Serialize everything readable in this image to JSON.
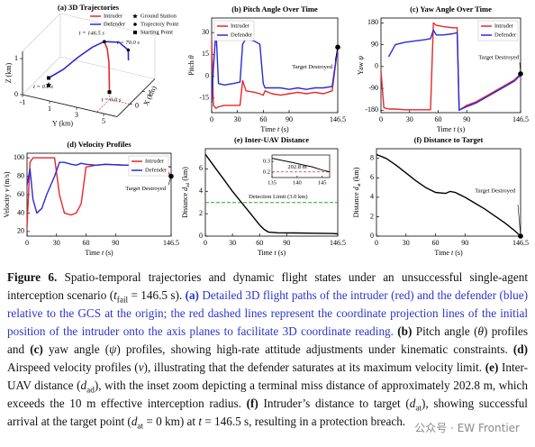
{
  "chart_data": [
    {
      "type": "line3d",
      "title": "(a) 3D Trajectories",
      "xlabel": [
        {
          "text": "X (km)"
        }
      ],
      "ylabel": [
        {
          "text": "Y (km)"
        }
      ],
      "zlabel": [
        {
          "text": "Z (km)"
        }
      ],
      "xlim": [
        -1,
        2
      ],
      "ylim": [
        -1,
        6
      ],
      "zlim": [
        0,
        1.2
      ],
      "xticks": [
        0,
        1
      ],
      "yticks": [
        -1,
        1,
        3,
        5
      ],
      "zticks": [
        0,
        1
      ],
      "series": [
        {
          "name": "Intruder",
          "color": "#e8262a",
          "x": [
            0,
            0.2,
            0.5,
            0.9,
            1.2
          ],
          "y": [
            4.5,
            4.3,
            4.0,
            3.5,
            3.0
          ],
          "z": [
            0.2,
            0.5,
            0.8,
            1.0,
            1.05
          ]
        },
        {
          "name": "Defender",
          "color": "#2a2ad6",
          "x": [
            0,
            0.3,
            0.6,
            0.9,
            1.2,
            1.5,
            1.6,
            1.4
          ],
          "y": [
            0,
            0.8,
            1.6,
            2.4,
            3.0,
            3.8,
            4.4,
            4.6
          ],
          "z": [
            0.2,
            0.4,
            0.7,
            0.95,
            1.05,
            1.0,
            0.8,
            0.6
          ]
        }
      ],
      "ground_station": {
        "x": 0,
        "y": 0,
        "z": 0
      },
      "marker_legend": [
        "Ground Station",
        "Trajectory Point",
        "Starting Point"
      ],
      "annotations": [
        "t = 146.5 s",
        "t = 70.0 s",
        "t = 0.0 s",
        "t = 0.0 s"
      ]
    },
    {
      "type": "line",
      "title": "(b) Pitch Angle Over Time",
      "xlabel": [
        {
          "text": "Time "
        },
        {
          "text": "t",
          "style": "italic"
        },
        {
          "text": " (s)"
        }
      ],
      "ylabel": [
        {
          "text": "Pitch "
        },
        {
          "text": "θ",
          "style": "italic"
        }
      ],
      "x": [
        0,
        2,
        5,
        8,
        15,
        25,
        33,
        36,
        40,
        50,
        56,
        60,
        62,
        70,
        80,
        90,
        100,
        110,
        120,
        130,
        140,
        146.5
      ],
      "series": [
        {
          "name": "Intruder",
          "color": "#e8262a",
          "values": [
            25,
            -20,
            -22,
            -21,
            -20,
            -20,
            -20,
            -3,
            -10,
            -11,
            -12,
            -13,
            -10,
            -12,
            -13,
            -12,
            -11,
            -12,
            -11,
            -12,
            -10,
            20
          ]
        },
        {
          "name": "Defender",
          "color": "#2a2ad6",
          "values": [
            -18,
            5,
            32,
            -5,
            -6,
            -5,
            -4,
            22,
            26,
            24,
            22,
            -5,
            -8,
            -8,
            -8,
            -9,
            -8,
            -9,
            -8,
            -8,
            -7,
            20
          ]
        }
      ],
      "xlim": [
        0,
        146.5
      ],
      "xticks": [
        0,
        30,
        60,
        90,
        146.5
      ],
      "ylim": [
        -25,
        40
      ],
      "yticks": [
        -15,
        0,
        15,
        30
      ],
      "legend": "upper left",
      "target": {
        "x": 146.5,
        "y": 20,
        "label": "Target Destroyed"
      }
    },
    {
      "type": "line",
      "title": "(c) Yaw Angle Over Time",
      "xlabel": [
        {
          "text": "Time "
        },
        {
          "text": "t",
          "style": "italic"
        },
        {
          "text": " (s)"
        }
      ],
      "ylabel": [
        {
          "text": "Yaw "
        },
        {
          "text": "ψ",
          "style": "italic"
        }
      ],
      "x": [
        0,
        3,
        8,
        15,
        25,
        35,
        45,
        52,
        55,
        58,
        65,
        75,
        80,
        82,
        90,
        100,
        120,
        140,
        146.5
      ],
      "series": [
        {
          "name": "Intruder",
          "color": "#e8262a",
          "values": [
            -20,
            -170,
            -175,
            -175,
            -178,
            -178,
            -178,
            -178,
            180,
            170,
            165,
            160,
            160,
            -180,
            -160,
            -145,
            -100,
            -55,
            -30
          ]
        },
        {
          "name": "Defender",
          "color": "#2a2ad6",
          "values": [
            null,
            null,
            40,
            90,
            100,
            105,
            110,
            115,
            150,
            130,
            130,
            135,
            140,
            -180,
            -165,
            -150,
            -105,
            -60,
            -35
          ]
        }
      ],
      "xlim": [
        0,
        146.5
      ],
      "xticks": [
        0,
        30,
        60,
        90,
        146.5
      ],
      "ylim": [
        -190,
        200
      ],
      "yticks": [
        -180,
        -90,
        0,
        90,
        180
      ],
      "legend": "upper right",
      "target": {
        "x": 146.5,
        "y": -30,
        "label": "Target Destroyed"
      }
    },
    {
      "type": "line",
      "title": "(d) Velocity Profiles",
      "xlabel": [
        {
          "text": "Time "
        },
        {
          "text": "t",
          "style": "italic"
        },
        {
          "text": " (s)"
        }
      ],
      "ylabel": [
        {
          "text": "Velocity "
        },
        {
          "text": "v",
          "style": "italic"
        },
        {
          "text": " (m/s)"
        }
      ],
      "x": [
        0,
        3,
        6,
        10,
        15,
        20,
        28,
        33,
        38,
        45,
        50,
        55,
        60,
        70,
        80,
        100,
        120,
        135,
        140,
        146.5
      ],
      "series": [
        {
          "name": "Intruder",
          "color": "#e8262a",
          "values": [
            25,
            95,
            100,
            100,
            100,
            100,
            100,
            60,
            40,
            38,
            40,
            50,
            90,
            92,
            93,
            92,
            93,
            95,
            90,
            80
          ]
        },
        {
          "name": "Defender",
          "color": "#2a2ad6",
          "values": [
            70,
            88,
            55,
            40,
            45,
            60,
            80,
            95,
            95,
            93,
            92,
            94,
            93,
            92,
            93,
            92,
            93,
            92,
            91,
            90
          ]
        }
      ],
      "xlim": [
        0,
        146.5
      ],
      "xticks": [
        0,
        30,
        60,
        90,
        146.5
      ],
      "ylim": [
        15,
        105
      ],
      "yticks": [
        20,
        40,
        60,
        80,
        100
      ],
      "legend": "upper right",
      "target": {
        "x": 146.5,
        "y": 80,
        "label": "Target Destroyed"
      }
    },
    {
      "type": "line",
      "title": "(e) Inter-UAV Distance",
      "xlabel": [
        {
          "text": "Time "
        },
        {
          "text": "t",
          "style": "italic"
        },
        {
          "text": " (s)"
        }
      ],
      "ylabel": [
        {
          "text": "Distance "
        },
        {
          "text": "d",
          "style": "italic"
        },
        {
          "text": "ad",
          "style": "sub"
        },
        {
          "text": " (km)"
        }
      ],
      "x": [
        0,
        10,
        20,
        30,
        40,
        50,
        60,
        65,
        70,
        80,
        100,
        120,
        140,
        146.5
      ],
      "series": [
        {
          "color": "#000000",
          "values": [
            7.3,
            6.2,
            5.1,
            4.0,
            3.0,
            2.0,
            1.0,
            0.6,
            0.35,
            0.3,
            0.28,
            0.26,
            0.23,
            0.2
          ]
        }
      ],
      "xlim": [
        0,
        146.5
      ],
      "xticks": [
        0,
        30,
        60,
        90,
        146.5
      ],
      "ylim": [
        0,
        7.8
      ],
      "yticks": [
        0,
        2,
        4,
        6
      ],
      "ref_line": {
        "value": 3.0,
        "label": "Detection Limit (3.0 km)",
        "color": "#2ca02c"
      },
      "inset": {
        "x": [
          135,
          137,
          139,
          141,
          143,
          145,
          146.5
        ],
        "values": [
          0.33,
          0.31,
          0.29,
          0.27,
          0.25,
          0.22,
          0.2028
        ],
        "xlim": [
          135,
          146.5
        ],
        "ylim": [
          0.15,
          0.36
        ],
        "xticks": [
          135,
          140,
          145
        ],
        "yticks": [
          0.2,
          0.3
        ],
        "ref_line": {
          "value": 0.2028,
          "label": "202.8 m",
          "color": "#e8262a"
        }
      }
    },
    {
      "type": "line",
      "title": "(f) Distance to Target",
      "xlabel": [
        {
          "text": "Time "
        },
        {
          "text": "t",
          "style": "italic"
        },
        {
          "text": " (s)"
        }
      ],
      "ylabel": [
        {
          "text": "Distance "
        },
        {
          "text": "d",
          "style": "italic"
        },
        {
          "text": "at",
          "style": "sub"
        },
        {
          "text": " (km)"
        }
      ],
      "x": [
        0,
        10,
        20,
        30,
        40,
        50,
        60,
        70,
        75,
        80,
        90,
        100,
        110,
        120,
        130,
        140,
        146.5
      ],
      "series": [
        {
          "color": "#000000",
          "values": [
            8.4,
            8.0,
            7.3,
            6.5,
            5.7,
            5.0,
            4.5,
            4.4,
            4.6,
            4.5,
            4.0,
            3.4,
            2.8,
            2.1,
            1.4,
            0.6,
            0
          ]
        }
      ],
      "xlim": [
        0,
        146.5
      ],
      "xticks": [
        0,
        30,
        60,
        90,
        146.5
      ],
      "ylim": [
        0,
        9
      ],
      "yticks": [
        0,
        2,
        4,
        6,
        8
      ],
      "target": {
        "x": 146.5,
        "y": 0,
        "label": "Target Destroyed"
      }
    }
  ],
  "caption": {
    "runs": [
      {
        "text": "Figure 6.",
        "style": "bold"
      },
      {
        "text": " Spatio-temporal trajectories and dynamic flight states under an unsuccessful single-agent interception scenario ("
      },
      {
        "text": "t",
        "style": "italic"
      },
      {
        "text": "fail",
        "style": "sub"
      },
      {
        "text": " = 146.5 s). "
      },
      {
        "text": "(a)",
        "style": "blue-bold"
      },
      {
        "text": " Detailed 3D flight paths of the intruder (red) and the defender (blue) relative to the GCS at the origin; the red dashed lines represent the coordinate projection lines of the initial position of the intruder onto the axis planes to facilitate 3D coordinate reading. ",
        "style": "blue"
      },
      {
        "text": "(b)",
        "style": "bold"
      },
      {
        "text": " Pitch angle ("
      },
      {
        "text": "θ",
        "style": "italic"
      },
      {
        "text": ") profiles and "
      },
      {
        "text": "(c)",
        "style": "bold"
      },
      {
        "text": " yaw angle ("
      },
      {
        "text": "ψ",
        "style": "italic"
      },
      {
        "text": ") profiles, showing high-rate attitude adjustments under kinematic constraints. "
      },
      {
        "text": "(d)",
        "style": "bold"
      },
      {
        "text": " Airspeed velocity profiles ("
      },
      {
        "text": "v",
        "style": "italic"
      },
      {
        "text": "), illustrating that the defender saturates at its maximum velocity limit. "
      },
      {
        "text": "(e)",
        "style": "bold"
      },
      {
        "text": " Inter-UAV distance ("
      },
      {
        "text": "d",
        "style": "italic"
      },
      {
        "text": "ad",
        "style": "sub"
      },
      {
        "text": "), with the inset zoom depicting a terminal miss distance of approximately 202.8 m, which exceeds the 10 m effective interception radius. "
      },
      {
        "text": "(f)",
        "style": "bold"
      },
      {
        "text": " Intruder’s distance to target ("
      },
      {
        "text": "d",
        "style": "italic"
      },
      {
        "text": "at",
        "style": "sub"
      },
      {
        "text": "), showing successful arrival at the target point ("
      },
      {
        "text": "d",
        "style": "italic"
      },
      {
        "text": "at",
        "style": "sub"
      },
      {
        "text": " = 0 km) at "
      },
      {
        "text": "t",
        "style": "italic"
      },
      {
        "text": " = 146.5 s, resulting in a protection breach."
      }
    ]
  },
  "watermark": "公众号 · EW Frontier"
}
